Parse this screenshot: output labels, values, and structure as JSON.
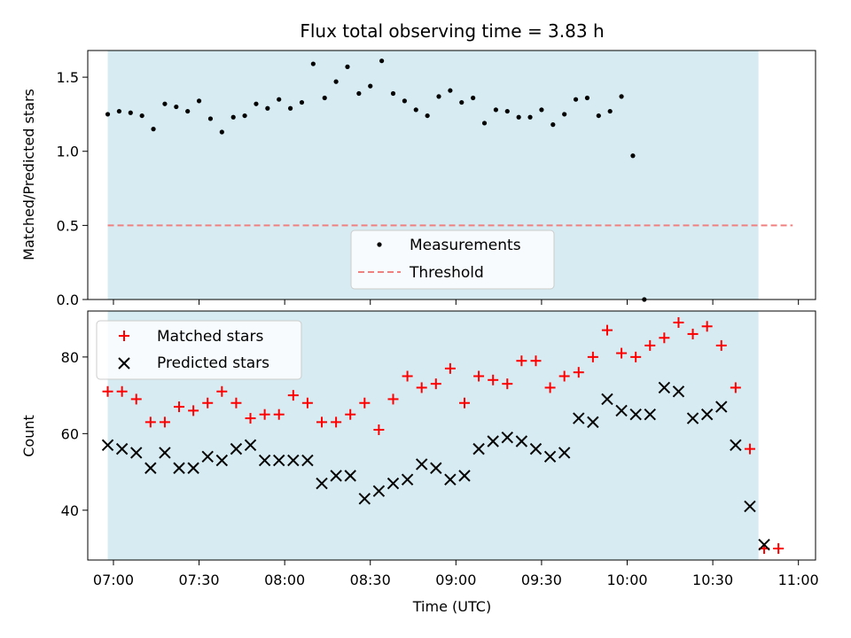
{
  "chart_data": [
    {
      "type": "scatter",
      "title": "Flux total observing time = 3.83 h",
      "ylabel": "Matched/Predicted stars",
      "xlabel": "",
      "ylim": [
        0,
        1.68
      ],
      "yticks": [
        "0.0",
        "0.5",
        "1.0",
        "1.5"
      ],
      "yticks_values": [
        0,
        0.5,
        1.0,
        1.5
      ],
      "legend": {
        "placement": "lower-center",
        "entries": [
          "Measurements",
          "Threshold"
        ]
      },
      "threshold": {
        "name": "Threshold",
        "value": 0.5,
        "color": "#f08080",
        "style": "dashed",
        "x_range": [
          "06:58",
          "10:58"
        ]
      },
      "observing_window": {
        "start": "06:58",
        "end": "10:46",
        "color": "#add8e6"
      },
      "series": [
        {
          "name": "Measurements",
          "color": "#000000",
          "points": [
            [
              "06:58",
              1.25
            ],
            [
              "07:02",
              1.27
            ],
            [
              "07:06",
              1.26
            ],
            [
              "07:10",
              1.24
            ],
            [
              "07:14",
              1.15
            ],
            [
              "07:18",
              1.32
            ],
            [
              "07:22",
              1.3
            ],
            [
              "07:26",
              1.27
            ],
            [
              "07:30",
              1.34
            ],
            [
              "07:34",
              1.22
            ],
            [
              "07:38",
              1.13
            ],
            [
              "07:42",
              1.23
            ],
            [
              "07:46",
              1.24
            ],
            [
              "07:50",
              1.32
            ],
            [
              "07:54",
              1.29
            ],
            [
              "07:58",
              1.35
            ],
            [
              "08:02",
              1.29
            ],
            [
              "08:06",
              1.33
            ],
            [
              "08:10",
              1.59
            ],
            [
              "08:14",
              1.36
            ],
            [
              "08:18",
              1.47
            ],
            [
              "08:22",
              1.57
            ],
            [
              "08:26",
              1.39
            ],
            [
              "08:30",
              1.44
            ],
            [
              "08:34",
              1.61
            ],
            [
              "08:38",
              1.39
            ],
            [
              "08:42",
              1.34
            ],
            [
              "08:46",
              1.28
            ],
            [
              "08:50",
              1.24
            ],
            [
              "08:54",
              1.37
            ],
            [
              "08:58",
              1.41
            ],
            [
              "09:02",
              1.33
            ],
            [
              "09:06",
              1.36
            ],
            [
              "09:10",
              1.19
            ],
            [
              "09:14",
              1.28
            ],
            [
              "09:18",
              1.27
            ],
            [
              "09:22",
              1.23
            ],
            [
              "09:26",
              1.23
            ],
            [
              "09:30",
              1.28
            ],
            [
              "09:34",
              1.18
            ],
            [
              "09:38",
              1.25
            ],
            [
              "09:42",
              1.35
            ],
            [
              "09:46",
              1.36
            ],
            [
              "09:50",
              1.24
            ],
            [
              "09:54",
              1.27
            ],
            [
              "09:58",
              1.37
            ],
            [
              "10:02",
              0.97
            ],
            [
              "10:06",
              0.0
            ]
          ]
        }
      ]
    },
    {
      "type": "scatter",
      "title": "",
      "xlabel": "Time (UTC)",
      "ylabel": "Count",
      "ylim": [
        27,
        92
      ],
      "yticks": [
        "40",
        "60",
        "80"
      ],
      "yticks_values": [
        40,
        60,
        80
      ],
      "xlim": [
        "06:51",
        "11:06"
      ],
      "xticks": [
        "07:00",
        "07:30",
        "08:00",
        "08:30",
        "09:00",
        "09:30",
        "10:00",
        "10:30",
        "11:00"
      ],
      "legend": {
        "placement": "top-left",
        "entries": [
          "Matched stars",
          "Predicted stars"
        ]
      },
      "observing_window": {
        "start": "06:58",
        "end": "10:46",
        "color": "#add8e6"
      },
      "series": [
        {
          "name": "Matched stars",
          "marker": "plus",
          "color": "#ff0000",
          "points": [
            [
              "06:58",
              71
            ],
            [
              "07:03",
              71
            ],
            [
              "07:08",
              69
            ],
            [
              "07:13",
              63
            ],
            [
              "07:18",
              63
            ],
            [
              "07:23",
              67
            ],
            [
              "07:28",
              66
            ],
            [
              "07:33",
              68
            ],
            [
              "07:38",
              71
            ],
            [
              "07:43",
              68
            ],
            [
              "07:48",
              64
            ],
            [
              "07:53",
              65
            ],
            [
              "07:58",
              65
            ],
            [
              "08:03",
              70
            ],
            [
              "08:08",
              68
            ],
            [
              "08:13",
              63
            ],
            [
              "08:18",
              63
            ],
            [
              "08:23",
              65
            ],
            [
              "08:28",
              68
            ],
            [
              "08:33",
              61
            ],
            [
              "08:38",
              69
            ],
            [
              "08:43",
              75
            ],
            [
              "08:48",
              72
            ],
            [
              "08:53",
              73
            ],
            [
              "08:58",
              77
            ],
            [
              "09:03",
              68
            ],
            [
              "09:08",
              75
            ],
            [
              "09:13",
              74
            ],
            [
              "09:18",
              73
            ],
            [
              "09:23",
              79
            ],
            [
              "09:28",
              79
            ],
            [
              "09:33",
              72
            ],
            [
              "09:38",
              75
            ],
            [
              "09:43",
              76
            ],
            [
              "09:48",
              80
            ],
            [
              "09:53",
              87
            ],
            [
              "09:58",
              81
            ],
            [
              "10:03",
              80
            ],
            [
              "10:08",
              83
            ],
            [
              "10:13",
              85
            ],
            [
              "10:18",
              89
            ],
            [
              "10:23",
              86
            ],
            [
              "10:28",
              88
            ],
            [
              "10:33",
              83
            ],
            [
              "10:38",
              72
            ],
            [
              "10:43",
              56
            ],
            [
              "10:48",
              30
            ],
            [
              "10:53",
              30
            ]
          ]
        },
        {
          "name": "Predicted stars",
          "marker": "x",
          "color": "#000000",
          "points": [
            [
              "06:58",
              57
            ],
            [
              "07:03",
              56
            ],
            [
              "07:08",
              55
            ],
            [
              "07:13",
              51
            ],
            [
              "07:18",
              55
            ],
            [
              "07:23",
              51
            ],
            [
              "07:28",
              51
            ],
            [
              "07:33",
              54
            ],
            [
              "07:38",
              53
            ],
            [
              "07:43",
              56
            ],
            [
              "07:48",
              57
            ],
            [
              "07:53",
              53
            ],
            [
              "07:58",
              53
            ],
            [
              "08:03",
              53
            ],
            [
              "08:08",
              53
            ],
            [
              "08:13",
              47
            ],
            [
              "08:18",
              49
            ],
            [
              "08:23",
              49
            ],
            [
              "08:28",
              43
            ],
            [
              "08:33",
              45
            ],
            [
              "08:38",
              47
            ],
            [
              "08:43",
              48
            ],
            [
              "08:48",
              52
            ],
            [
              "08:53",
              51
            ],
            [
              "08:58",
              48
            ],
            [
              "09:03",
              49
            ],
            [
              "09:08",
              56
            ],
            [
              "09:13",
              58
            ],
            [
              "09:18",
              59
            ],
            [
              "09:23",
              58
            ],
            [
              "09:28",
              56
            ],
            [
              "09:33",
              54
            ],
            [
              "09:38",
              55
            ],
            [
              "09:43",
              64
            ],
            [
              "09:48",
              63
            ],
            [
              "09:53",
              69
            ],
            [
              "09:58",
              66
            ],
            [
              "10:03",
              65
            ],
            [
              "10:08",
              65
            ],
            [
              "10:13",
              72
            ],
            [
              "10:18",
              71
            ],
            [
              "10:23",
              64
            ],
            [
              "10:28",
              65
            ],
            [
              "10:33",
              67
            ],
            [
              "10:38",
              57
            ],
            [
              "10:43",
              41
            ],
            [
              "10:48",
              31
            ]
          ]
        }
      ]
    }
  ]
}
